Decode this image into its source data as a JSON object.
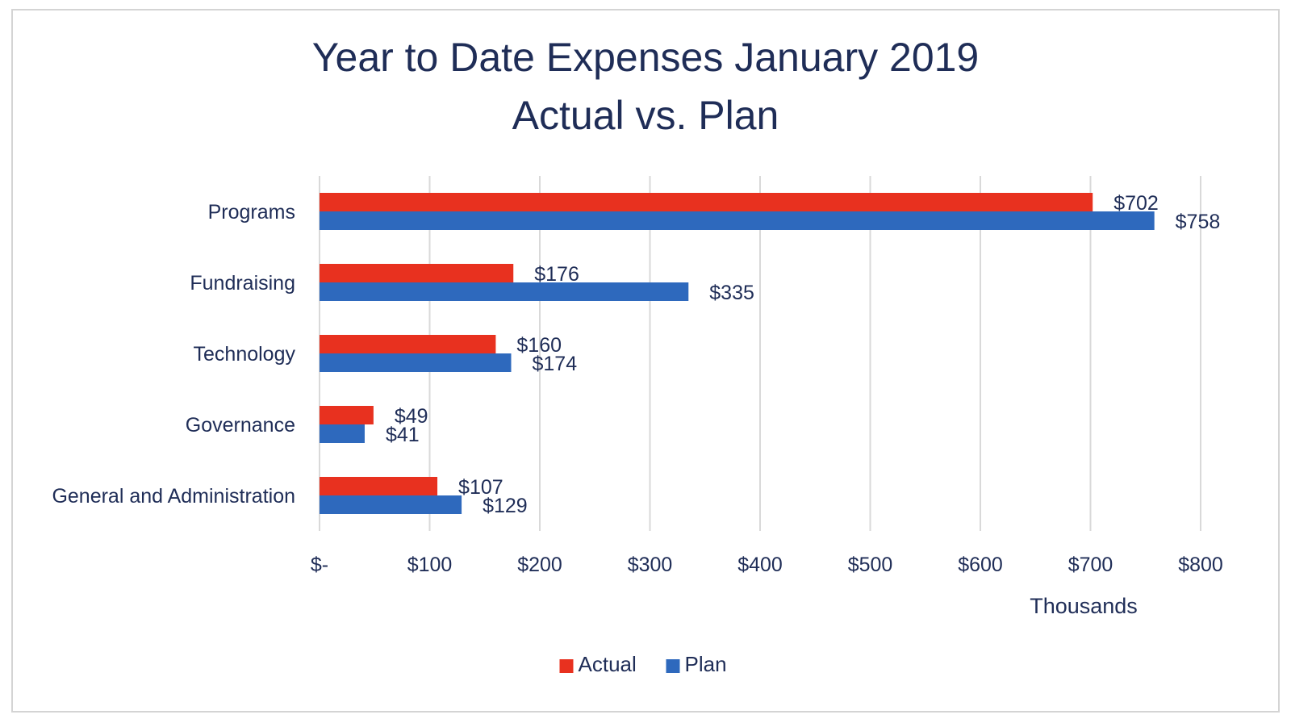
{
  "chart_data": {
    "type": "bar",
    "orientation": "horizontal",
    "title": "Year to Date Expenses January 2019",
    "subtitle": "Actual vs. Plan",
    "categories": [
      "Programs",
      "Fundraising",
      "Technology",
      "Governance",
      "General and Administration"
    ],
    "series": [
      {
        "name": "Actual",
        "color": "#e8311f",
        "values": [
          702,
          176,
          160,
          49,
          107
        ],
        "labels": [
          "$702",
          "$176",
          "$160",
          "$49",
          "$107"
        ]
      },
      {
        "name": "Plan",
        "color": "#2e69bd",
        "values": [
          758,
          335,
          174,
          41,
          129
        ],
        "labels": [
          "$758",
          "$335",
          "$174",
          "$41",
          "$129"
        ]
      }
    ],
    "x_ticks": [
      0,
      100,
      200,
      300,
      400,
      500,
      600,
      700,
      800
    ],
    "x_tick_labels": [
      "$-",
      "$100",
      "$200",
      "$300",
      "$400",
      "$500",
      "$600",
      "$700",
      "$800"
    ],
    "xlim": [
      0,
      800
    ],
    "xlabel": "Thousands",
    "ylabel": "",
    "grid": "vertical",
    "legend": "bottom"
  }
}
